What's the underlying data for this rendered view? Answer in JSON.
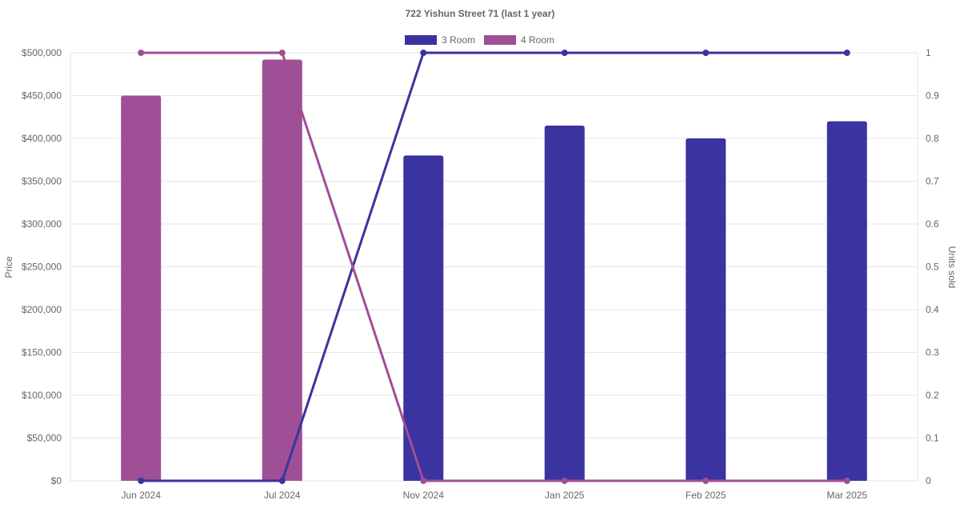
{
  "chart_data": {
    "type": "bar",
    "title": "722 Yishun Street 71 (last 1 year)",
    "categories": [
      "Jun 2024",
      "Jul 2024",
      "Nov 2024",
      "Jan 2025",
      "Feb 2025",
      "Mar 2025"
    ],
    "legend": {
      "placement": "top-center"
    },
    "grid": true,
    "y_left": {
      "label": "Price",
      "range": [
        0,
        500000
      ],
      "ticks": [
        0,
        50000,
        100000,
        150000,
        200000,
        250000,
        300000,
        350000,
        400000,
        450000,
        500000
      ],
      "tick_labels": [
        "$0",
        "$50,000",
        "$100,000",
        "$150,000",
        "$200,000",
        "$250,000",
        "$300,000",
        "$350,000",
        "$400,000",
        "$450,000",
        "$500,000"
      ]
    },
    "y_right": {
      "label": "Units sold",
      "range": [
        0,
        1
      ],
      "ticks": [
        0,
        0.1,
        0.2,
        0.3,
        0.4,
        0.5,
        0.6,
        0.7,
        0.8,
        0.9,
        1
      ],
      "tick_labels": [
        "0",
        "0.1",
        "0.2",
        "0.3",
        "0.4",
        "0.5",
        "0.6",
        "0.7",
        "0.8",
        "0.9",
        "1"
      ]
    },
    "series": [
      {
        "name": "3 Room",
        "color": "#3a33a0",
        "price": [
          null,
          null,
          380000,
          415000,
          400000,
          420000
        ],
        "units_sold": [
          0,
          0,
          1,
          1,
          1,
          1
        ]
      },
      {
        "name": "4 Room",
        "color": "#9e4f95",
        "price": [
          450000,
          492000,
          null,
          null,
          null,
          null
        ],
        "units_sold": [
          1,
          1,
          0,
          0,
          0,
          0
        ]
      }
    ]
  }
}
